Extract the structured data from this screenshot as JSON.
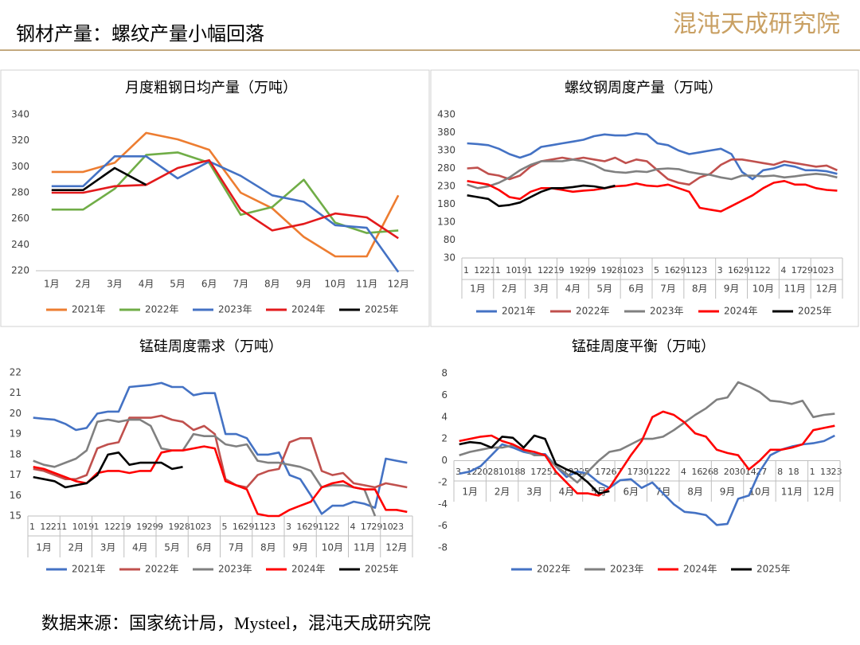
{
  "header": {
    "title": "钢材产量：螺纹产量小幅回落",
    "logo": "混沌天成研究院"
  },
  "footer": {
    "source": "数据来源：国家统计局，Mysteel，混沌天成研究院"
  },
  "chart_data": [
    {
      "type": "line",
      "title": "月度粗钢日均产量（万吨）",
      "categories": [
        "1月",
        "2月",
        "3月",
        "4月",
        "5月",
        "6月",
        "7月",
        "8月",
        "9月",
        "10月",
        "11月",
        "12月"
      ],
      "ylim": [
        220,
        340
      ],
      "yticks": [
        220,
        240,
        260,
        280,
        300,
        320,
        340
      ],
      "grid": false,
      "series": [
        {
          "name": "2021年",
          "color": "#ED7D31",
          "values": [
            296,
            296,
            303,
            326,
            321,
            313,
            280,
            268,
            246,
            231,
            231,
            278
          ]
        },
        {
          "name": "2022年",
          "color": "#70AD47",
          "values": [
            267,
            267,
            283,
            309,
            311,
            303,
            263,
            269,
            290,
            257,
            249,
            251
          ]
        },
        {
          "name": "2023年",
          "color": "#4472C4",
          "values": [
            285,
            285,
            308,
            308,
            291,
            304,
            293,
            278,
            273,
            255,
            253,
            219
          ]
        },
        {
          "name": "2024年",
          "color": "#E31A1C",
          "values": [
            280,
            280,
            285,
            286,
            299,
            305,
            267,
            251,
            256,
            264,
            261,
            245
          ]
        },
        {
          "name": "2025年",
          "color": "#000000",
          "values": [
            282,
            282,
            299,
            286,
            null,
            null,
            null,
            null,
            null,
            null,
            null,
            null
          ]
        }
      ]
    },
    {
      "type": "line",
      "title": "螺纹钢周度产量（万吨）",
      "categories": [
        "1",
        "12",
        "21",
        "1",
        "10",
        "19",
        "1",
        "12",
        "21",
        "9",
        "19",
        "29",
        "9",
        "19",
        "28",
        "10",
        "23",
        null,
        "5",
        "16",
        "29",
        "11",
        "23",
        null,
        "3",
        "16",
        "29",
        "11",
        "22",
        null,
        "4",
        "17",
        "29",
        "10",
        "23",
        null
      ],
      "groups": [
        "1月",
        "2月",
        "3月",
        "4月",
        "5月",
        "6月",
        "7月",
        "8月",
        "9月",
        "10月",
        "11月",
        "12月"
      ],
      "ylim": [
        30,
        430
      ],
      "yticks": [
        30,
        80,
        130,
        180,
        230,
        280,
        330,
        380,
        430
      ],
      "grid": false,
      "series": [
        {
          "name": "2021年",
          "color": "#4472C4",
          "values": [
            350,
            348,
            345,
            335,
            320,
            310,
            320,
            340,
            345,
            350,
            355,
            360,
            370,
            375,
            372,
            372,
            378,
            375,
            350,
            345,
            330,
            320,
            325,
            330,
            335,
            320,
            270,
            250,
            275,
            280,
            290,
            285,
            275,
            275,
            272,
            265
          ]
        },
        {
          "name": "2022年",
          "color": "#C0504D",
          "values": [
            280,
            282,
            265,
            260,
            250,
            260,
            285,
            300,
            305,
            310,
            305,
            310,
            305,
            300,
            310,
            295,
            305,
            300,
            275,
            250,
            240,
            235,
            255,
            265,
            290,
            305,
            305,
            300,
            295,
            290,
            300,
            295,
            290,
            285,
            288,
            275
          ]
        },
        {
          "name": "2023年",
          "color": "#808080",
          "values": [
            235,
            225,
            230,
            240,
            255,
            275,
            290,
            300,
            300,
            300,
            305,
            300,
            290,
            275,
            270,
            268,
            272,
            270,
            278,
            280,
            278,
            270,
            265,
            262,
            255,
            250,
            260,
            260,
            258,
            260,
            255,
            258,
            262,
            265,
            262,
            255
          ]
        },
        {
          "name": "2024年",
          "color": "#FF0000",
          "values": [
            245,
            240,
            235,
            220,
            200,
            195,
            215,
            225,
            225,
            220,
            215,
            218,
            220,
            225,
            230,
            232,
            238,
            232,
            230,
            235,
            225,
            215,
            170,
            165,
            160,
            175,
            190,
            205,
            225,
            240,
            245,
            235,
            235,
            225,
            220,
            218
          ]
        },
        {
          "name": "2025年",
          "color": "#000000",
          "values": [
            205,
            200,
            195,
            175,
            178,
            185,
            200,
            215,
            225,
            225,
            228,
            232,
            230,
            225,
            232,
            null,
            null,
            null,
            null,
            null,
            null,
            null,
            null,
            null,
            null,
            null,
            null,
            null,
            null,
            null,
            null,
            null,
            null,
            null,
            null,
            null
          ]
        }
      ]
    },
    {
      "type": "line",
      "title": "锰硅周度需求（万吨）",
      "categories": [
        "1",
        "12",
        "21",
        "1",
        "10",
        "19",
        "1",
        "12",
        "21",
        "9",
        "19",
        "29",
        "9",
        "19",
        "28",
        "10",
        "23",
        null,
        "5",
        "16",
        "29",
        "11",
        "23",
        null,
        "3",
        "16",
        "29",
        "11",
        "22",
        null,
        "4",
        "17",
        "29",
        "10",
        "23",
        null
      ],
      "groups": [
        "1月",
        "2月",
        "3月",
        "4月",
        "5月",
        "6月",
        "7月",
        "8月",
        "9月",
        "10月",
        "11月",
        "12月"
      ],
      "ylim": [
        15,
        22
      ],
      "yticks": [
        15,
        16,
        17,
        18,
        19,
        20,
        21,
        22
      ],
      "grid": false,
      "series": [
        {
          "name": "2021年",
          "color": "#4472C4",
          "values": [
            19.8,
            19.75,
            19.7,
            19.5,
            19.2,
            19.3,
            20.0,
            20.1,
            20.1,
            21.3,
            21.35,
            21.4,
            21.5,
            21.3,
            21.3,
            20.9,
            21.0,
            21.0,
            19.0,
            19.0,
            18.8,
            18.0,
            18.0,
            18.1,
            17.0,
            16.8,
            16.0,
            15.1,
            15.5,
            15.5,
            15.7,
            15.6,
            15.4,
            17.8,
            17.7,
            17.6
          ]
        },
        {
          "name": "2022年",
          "color": "#C0504D",
          "values": [
            17.3,
            17.2,
            17.0,
            16.8,
            16.8,
            17.0,
            18.3,
            18.5,
            18.6,
            19.8,
            19.8,
            19.8,
            19.9,
            19.7,
            19.6,
            19.2,
            19.4,
            19.0,
            16.8,
            16.5,
            16.4,
            17.0,
            17.2,
            17.3,
            18.6,
            18.8,
            18.8,
            17.2,
            17.0,
            17.1,
            16.6,
            16.5,
            16.4,
            16.6,
            16.5,
            16.4
          ]
        },
        {
          "name": "2023年",
          "color": "#808080",
          "values": [
            17.7,
            17.5,
            17.4,
            17.6,
            17.8,
            18.2,
            19.6,
            19.7,
            19.6,
            19.7,
            19.7,
            19.4,
            18.3,
            18.2,
            18.2,
            19.0,
            18.9,
            18.9,
            18.5,
            18.4,
            18.5,
            17.7,
            17.6,
            17.6,
            17.5,
            17.4,
            17.2,
            16.4,
            16.5,
            16.5,
            16.4,
            16.3,
            15.0,
            null,
            null,
            null
          ]
        },
        {
          "name": "2024年",
          "color": "#FF0000",
          "values": [
            17.4,
            17.3,
            17.1,
            16.9,
            16.7,
            16.6,
            17.1,
            17.2,
            17.2,
            17.1,
            17.2,
            17.2,
            18.1,
            18.2,
            18.2,
            18.3,
            18.4,
            18.3,
            16.7,
            16.5,
            16.3,
            15.1,
            15.0,
            15.0,
            15.3,
            15.5,
            15.7,
            16.4,
            16.6,
            16.7,
            16.4,
            16.3,
            16.3,
            15.3,
            15.3,
            15.2
          ]
        },
        {
          "name": "2025年",
          "color": "#000000",
          "values": [
            16.9,
            16.8,
            16.7,
            16.4,
            16.5,
            16.6,
            17.0,
            18.0,
            18.1,
            17.5,
            17.6,
            17.6,
            17.6,
            17.3,
            17.4,
            null,
            null,
            null,
            null,
            null,
            null,
            null,
            null,
            null,
            null,
            null,
            null,
            null,
            null,
            null,
            null,
            null,
            null,
            null,
            null,
            null
          ]
        }
      ]
    },
    {
      "type": "line",
      "title": "锰硅周度平衡（万吨）",
      "categories": [
        "3",
        "12",
        "20",
        "28",
        "10",
        "18",
        "8",
        "17",
        "25",
        "1",
        "12",
        "22",
        "5",
        "17",
        "26",
        "7",
        "17",
        "30",
        "12",
        "22",
        null,
        "4",
        "16",
        "26",
        "8",
        "20",
        "30",
        "14",
        "27",
        null,
        "8",
        "18",
        null,
        "1",
        "13",
        "23"
      ],
      "groups": [
        "1月",
        "2月",
        "3月",
        "4月",
        "5月",
        "6月",
        "7月",
        "8月",
        "9月",
        "10月",
        "11月",
        "12月"
      ],
      "ylim": [
        -8,
        8
      ],
      "yticks": [
        -8,
        -6,
        -4,
        -2,
        0,
        2,
        4,
        6,
        8
      ],
      "grid": false,
      "series": [
        {
          "name": "2022年",
          "color": "#4472C4",
          "values": [
            -1.2,
            -1.0,
            -0.5,
            0.5,
            1.5,
            1.2,
            0.8,
            0.6,
            0.6,
            -0.5,
            -1.5,
            -1.0,
            -1.2,
            -2.0,
            -2.5,
            -1.8,
            -1.7,
            -2.5,
            -2.0,
            -3.0,
            -4.0,
            -4.7,
            -4.8,
            -5.0,
            -5.9,
            -5.8,
            -3.5,
            -3.2,
            -1.0,
            0.5,
            1.0,
            1.3,
            1.5,
            1.6,
            1.8,
            2.3
          ]
        },
        {
          "name": "2023年",
          "color": "#808080",
          "values": [
            0.5,
            0.8,
            1.0,
            1.2,
            1.2,
            1.4,
            1.0,
            0.5,
            0.5,
            -0.5,
            -1.2,
            -2.0,
            -1.0,
            0.0,
            0.8,
            1.0,
            1.5,
            2.0,
            2.0,
            2.2,
            2.8,
            3.5,
            4.2,
            4.8,
            5.6,
            5.8,
            7.2,
            6.8,
            6.3,
            5.5,
            5.4,
            5.2,
            5.5,
            4.0,
            4.2,
            4.3
          ]
        },
        {
          "name": "2024年",
          "color": "#FF0000",
          "values": [
            1.8,
            2.0,
            2.2,
            2.3,
            1.8,
            1.5,
            1.0,
            0.8,
            0.5,
            -1.0,
            -2.0,
            -3.0,
            -3.0,
            -3.2,
            -2.5,
            -1.0,
            0.5,
            1.8,
            4.0,
            4.5,
            4.2,
            3.5,
            2.5,
            2.2,
            1.0,
            0.7,
            0.5,
            -0.8,
            0.0,
            1.0,
            1.0,
            1.2,
            1.5,
            2.8,
            3.0,
            3.2
          ]
        },
        {
          "name": "2025年",
          "color": "#000000",
          "values": [
            1.5,
            1.7,
            1.6,
            1.2,
            2.2,
            2.1,
            1.2,
            2.3,
            2.0,
            -0.3,
            -0.8,
            -1.2,
            -2.0,
            -3.0,
            -2.8,
            null,
            null,
            null,
            null,
            null,
            null,
            null,
            null,
            null,
            null,
            null,
            null,
            null,
            null,
            null,
            null,
            null,
            null,
            null,
            null,
            null
          ]
        }
      ]
    }
  ]
}
